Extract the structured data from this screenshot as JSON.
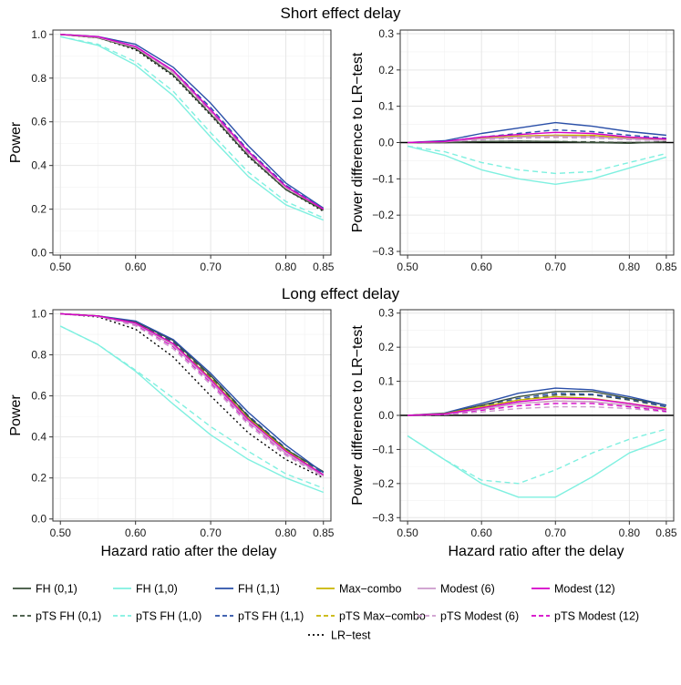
{
  "titles": {
    "top": "Short effect delay",
    "bottom": "Long effect delay"
  },
  "axes": {
    "xlabel": "Hazard ratio after the delay",
    "ylabel_left": "Power",
    "ylabel_right": "Power difference to LR−test",
    "xticks": [
      "0.50",
      "0.60",
      "0.70",
      "0.80",
      "0.85"
    ],
    "xtick_values": [
      0.5,
      0.6,
      0.7,
      0.8,
      0.85
    ],
    "yticks_left": [
      "0.0",
      "0.2",
      "0.4",
      "0.6",
      "0.8",
      "1.0"
    ],
    "yticks_left_values": [
      0,
      0.2,
      0.4,
      0.6,
      0.8,
      1.0
    ],
    "yticks_right": [
      "−0.3",
      "−0.2",
      "−0.1",
      "0.0",
      "0.1",
      "0.2",
      "0.3"
    ],
    "yticks_right_values": [
      -0.3,
      -0.2,
      -0.1,
      0,
      0.1,
      0.2,
      0.3
    ]
  },
  "legend": [
    {
      "key": "fh01",
      "label": "FH (0,1)",
      "color": "#3a4f3a",
      "dash": "solid"
    },
    {
      "key": "fh10",
      "label": "FH (1,0)",
      "color": "#7ff0e0",
      "dash": "solid"
    },
    {
      "key": "fh11",
      "label": "FH (1,1)",
      "color": "#2a4fa8",
      "dash": "solid"
    },
    {
      "key": "maxc",
      "label": "Max−combo",
      "color": "#c8b400",
      "dash": "solid"
    },
    {
      "key": "mod6",
      "label": "Modest (6)",
      "color": "#cc99cc",
      "dash": "solid"
    },
    {
      "key": "mod12",
      "label": "Modest (12)",
      "color": "#d400c8",
      "dash": "solid"
    },
    {
      "key": "pfh01",
      "label": "pTS FH (0,1)",
      "color": "#3a4f3a",
      "dash": "dashed"
    },
    {
      "key": "pfh10",
      "label": "pTS FH (1,0)",
      "color": "#7ff0e0",
      "dash": "dashed"
    },
    {
      "key": "pfh11",
      "label": "pTS FH (1,1)",
      "color": "#2a4fa8",
      "dash": "dashed"
    },
    {
      "key": "pmaxc",
      "label": "pTS Max−combo",
      "color": "#c8b400",
      "dash": "dashed"
    },
    {
      "key": "pmod6",
      "label": "pTS Modest (6)",
      "color": "#cc99cc",
      "dash": "dashed"
    },
    {
      "key": "pmod12",
      "label": "pTS Modest (12)",
      "color": "#d400c8",
      "dash": "dashed"
    },
    {
      "key": "lr",
      "label": "LR−test",
      "color": "#000000",
      "dash": "dotted"
    }
  ],
  "chart_data": [
    {
      "id": "short-power",
      "type": "line",
      "title": "Short effect delay",
      "xlabel": "",
      "ylabel": "Power",
      "xlim": [
        0.49,
        0.86
      ],
      "ylim": [
        -0.01,
        1.02
      ],
      "x": [
        0.5,
        0.55,
        0.6,
        0.65,
        0.7,
        0.75,
        0.8,
        0.85
      ],
      "series": [
        {
          "name": "LR−test",
          "values": [
            1.0,
            0.985,
            0.93,
            0.81,
            0.63,
            0.44,
            0.29,
            0.19
          ]
        },
        {
          "name": "FH (0,1)",
          "values": [
            1.0,
            0.985,
            0.935,
            0.815,
            0.635,
            0.445,
            0.29,
            0.195
          ]
        },
        {
          "name": "FH (1,0)",
          "values": [
            0.99,
            0.95,
            0.86,
            0.72,
            0.53,
            0.35,
            0.22,
            0.15
          ]
        },
        {
          "name": "FH (1,1)",
          "values": [
            1.0,
            0.99,
            0.955,
            0.85,
            0.685,
            0.49,
            0.32,
            0.205
          ]
        },
        {
          "name": "Max−combo",
          "values": [
            1.0,
            0.987,
            0.94,
            0.83,
            0.65,
            0.46,
            0.3,
            0.2
          ]
        },
        {
          "name": "Modest (6)",
          "values": [
            1.0,
            0.987,
            0.94,
            0.83,
            0.65,
            0.46,
            0.3,
            0.2
          ]
        },
        {
          "name": "Modest (12)",
          "values": [
            1.0,
            0.99,
            0.945,
            0.835,
            0.655,
            0.465,
            0.305,
            0.2
          ]
        },
        {
          "name": "pTS FH (0,1)",
          "values": [
            1.0,
            0.985,
            0.935,
            0.815,
            0.635,
            0.445,
            0.29,
            0.195
          ]
        },
        {
          "name": "pTS FH (1,0)",
          "values": [
            0.99,
            0.955,
            0.875,
            0.74,
            0.55,
            0.37,
            0.235,
            0.16
          ]
        },
        {
          "name": "pTS FH (1,1)",
          "values": [
            1.0,
            0.988,
            0.945,
            0.835,
            0.665,
            0.47,
            0.31,
            0.2
          ]
        },
        {
          "name": "pTS Max−combo",
          "values": [
            1.0,
            0.987,
            0.94,
            0.825,
            0.645,
            0.455,
            0.3,
            0.198
          ]
        },
        {
          "name": "pTS Modest (6)",
          "values": [
            1.0,
            0.987,
            0.938,
            0.825,
            0.642,
            0.452,
            0.298,
            0.197
          ]
        },
        {
          "name": "pTS Modest (12)",
          "values": [
            1.0,
            0.988,
            0.94,
            0.83,
            0.648,
            0.458,
            0.3,
            0.198
          ]
        }
      ]
    },
    {
      "id": "short-diff",
      "type": "line",
      "title": "Short effect delay",
      "xlabel": "",
      "ylabel": "Power difference to LR−test",
      "xlim": [
        0.49,
        0.86
      ],
      "ylim": [
        -0.31,
        0.31
      ],
      "x": [
        0.5,
        0.55,
        0.6,
        0.65,
        0.7,
        0.75,
        0.8,
        0.85
      ],
      "series": [
        {
          "name": "FH (0,1)",
          "values": [
            0.0,
            0.0,
            0.003,
            0.004,
            0.003,
            0.0,
            -0.002,
            0.002
          ]
        },
        {
          "name": "FH (1,0)",
          "values": [
            -0.01,
            -0.035,
            -0.075,
            -0.1,
            -0.115,
            -0.1,
            -0.07,
            -0.04
          ]
        },
        {
          "name": "FH (1,1)",
          "values": [
            0.0,
            0.005,
            0.025,
            0.04,
            0.055,
            0.045,
            0.03,
            0.02
          ]
        },
        {
          "name": "Max−combo",
          "values": [
            0.0,
            0.002,
            0.012,
            0.018,
            0.02,
            0.02,
            0.012,
            0.008
          ]
        },
        {
          "name": "Modest (6)",
          "values": [
            0.0,
            0.002,
            0.01,
            0.015,
            0.018,
            0.015,
            0.01,
            0.006
          ]
        },
        {
          "name": "Modest (12)",
          "values": [
            0.0,
            0.003,
            0.015,
            0.022,
            0.028,
            0.025,
            0.015,
            0.01
          ]
        },
        {
          "name": "pTS FH (0,1)",
          "values": [
            0.0,
            0.0,
            0.003,
            0.004,
            0.003,
            0.002,
            0.0,
            0.002
          ]
        },
        {
          "name": "pTS FH (1,0)",
          "values": [
            -0.01,
            -0.025,
            -0.055,
            -0.075,
            -0.085,
            -0.08,
            -0.055,
            -0.03
          ]
        },
        {
          "name": "pTS FH (1,1)",
          "values": [
            0.0,
            0.003,
            0.015,
            0.025,
            0.035,
            0.03,
            0.02,
            0.012
          ]
        },
        {
          "name": "pTS Max−combo",
          "values": [
            0.0,
            0.002,
            0.01,
            0.015,
            0.017,
            0.016,
            0.01,
            0.006
          ]
        },
        {
          "name": "pTS Modest (6)",
          "values": [
            0.0,
            0.002,
            0.008,
            0.012,
            0.014,
            0.012,
            0.008,
            0.005
          ]
        },
        {
          "name": "pTS Modest (12)",
          "values": [
            0.0,
            0.002,
            0.01,
            0.018,
            0.02,
            0.018,
            0.012,
            0.008
          ]
        }
      ]
    },
    {
      "id": "long-power",
      "type": "line",
      "title": "Long effect delay",
      "xlabel": "Hazard ratio after the delay",
      "ylabel": "Power",
      "xlim": [
        0.49,
        0.86
      ],
      "ylim": [
        -0.01,
        1.02
      ],
      "x": [
        0.5,
        0.55,
        0.6,
        0.65,
        0.7,
        0.75,
        0.8,
        0.85
      ],
      "series": [
        {
          "name": "LR−test",
          "values": [
            1.0,
            0.985,
            0.925,
            0.79,
            0.6,
            0.42,
            0.29,
            0.2
          ]
        },
        {
          "name": "FH (0,1)",
          "values": [
            1.0,
            0.99,
            0.96,
            0.87,
            0.7,
            0.5,
            0.34,
            0.23
          ]
        },
        {
          "name": "FH (1,0)",
          "values": [
            0.94,
            0.85,
            0.72,
            0.56,
            0.41,
            0.29,
            0.2,
            0.13
          ]
        },
        {
          "name": "FH (1,1)",
          "values": [
            1.0,
            0.99,
            0.965,
            0.875,
            0.71,
            0.52,
            0.36,
            0.225
          ]
        },
        {
          "name": "Max−combo",
          "values": [
            1.0,
            0.99,
            0.955,
            0.855,
            0.685,
            0.49,
            0.335,
            0.215
          ]
        },
        {
          "name": "Modest (6)",
          "values": [
            1.0,
            0.988,
            0.95,
            0.845,
            0.67,
            0.475,
            0.32,
            0.21
          ]
        },
        {
          "name": "Modest (12)",
          "values": [
            1.0,
            0.99,
            0.955,
            0.855,
            0.68,
            0.485,
            0.33,
            0.215
          ]
        },
        {
          "name": "pTS FH (0,1)",
          "values": [
            1.0,
            0.99,
            0.955,
            0.86,
            0.69,
            0.495,
            0.335,
            0.22
          ]
        },
        {
          "name": "pTS FH (1,0)",
          "values": [
            0.94,
            0.85,
            0.725,
            0.59,
            0.45,
            0.33,
            0.22,
            0.15
          ]
        },
        {
          "name": "pTS FH (1,1)",
          "values": [
            1.0,
            0.99,
            0.96,
            0.865,
            0.7,
            0.505,
            0.345,
            0.22
          ]
        },
        {
          "name": "pTS Max−combo",
          "values": [
            1.0,
            0.988,
            0.95,
            0.845,
            0.67,
            0.475,
            0.32,
            0.21
          ]
        },
        {
          "name": "pTS Modest (6)",
          "values": [
            1.0,
            0.987,
            0.942,
            0.83,
            0.655,
            0.46,
            0.31,
            0.205
          ]
        },
        {
          "name": "pTS Modest (12)",
          "values": [
            1.0,
            0.988,
            0.948,
            0.84,
            0.665,
            0.47,
            0.318,
            0.21
          ]
        }
      ]
    },
    {
      "id": "long-diff",
      "type": "line",
      "title": "Long effect delay",
      "xlabel": "Hazard ratio after the delay",
      "ylabel": "Power difference to LR−test",
      "xlim": [
        0.49,
        0.86
      ],
      "ylim": [
        -0.31,
        0.31
      ],
      "x": [
        0.5,
        0.55,
        0.6,
        0.65,
        0.7,
        0.75,
        0.8,
        0.85
      ],
      "series": [
        {
          "name": "FH (0,1)",
          "values": [
            0.0,
            0.005,
            0.03,
            0.055,
            0.07,
            0.07,
            0.05,
            0.03
          ]
        },
        {
          "name": "FH (1,0)",
          "values": [
            -0.06,
            -0.13,
            -0.2,
            -0.24,
            -0.24,
            -0.18,
            -0.11,
            -0.07
          ]
        },
        {
          "name": "FH (1,1)",
          "values": [
            0.0,
            0.007,
            0.035,
            0.065,
            0.08,
            0.075,
            0.055,
            0.03
          ]
        },
        {
          "name": "Max−combo",
          "values": [
            0.0,
            0.005,
            0.025,
            0.045,
            0.055,
            0.05,
            0.035,
            0.02
          ]
        },
        {
          "name": "Modest (6)",
          "values": [
            0.0,
            0.003,
            0.018,
            0.035,
            0.042,
            0.04,
            0.03,
            0.015
          ]
        },
        {
          "name": "Modest (12)",
          "values": [
            0.0,
            0.004,
            0.022,
            0.04,
            0.05,
            0.048,
            0.035,
            0.018
          ]
        },
        {
          "name": "pTS FH (0,1)",
          "values": [
            0.0,
            0.004,
            0.025,
            0.045,
            0.06,
            0.06,
            0.045,
            0.025
          ]
        },
        {
          "name": "pTS FH (1,0)",
          "values": [
            -0.06,
            -0.13,
            -0.19,
            -0.2,
            -0.16,
            -0.11,
            -0.07,
            -0.04
          ]
        },
        {
          "name": "pTS FH (1,1)",
          "values": [
            0.0,
            0.005,
            0.028,
            0.05,
            0.065,
            0.062,
            0.048,
            0.025
          ]
        },
        {
          "name": "pTS Max−combo",
          "values": [
            0.0,
            0.003,
            0.018,
            0.035,
            0.042,
            0.04,
            0.03,
            0.015
          ]
        },
        {
          "name": "pTS Modest (6)",
          "values": [
            0.0,
            0.002,
            0.01,
            0.02,
            0.025,
            0.025,
            0.02,
            0.01
          ]
        },
        {
          "name": "pTS Modest (12)",
          "values": [
            0.0,
            0.003,
            0.015,
            0.028,
            0.035,
            0.035,
            0.025,
            0.012
          ]
        }
      ]
    }
  ]
}
